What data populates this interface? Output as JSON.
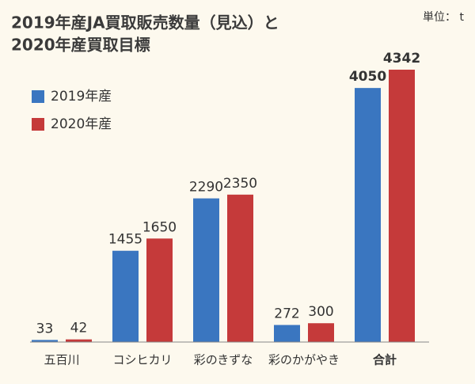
{
  "chart_data": {
    "type": "bar",
    "title": [
      "2019年産JA買取販売数量（見込）と",
      "2020年産買取目標"
    ],
    "unit": "単位： t",
    "categories": [
      "五百川",
      "コシヒカリ",
      "彩のきずな",
      "彩のかがやき",
      "合計"
    ],
    "series": [
      {
        "name": "2019年産",
        "color": "#3a76c0",
        "values": [
          33,
          1455,
          2290,
          272,
          4050
        ]
      },
      {
        "name": "2020年産",
        "color": "#c53a3a",
        "values": [
          42,
          1650,
          2350,
          300,
          4342
        ]
      }
    ]
  }
}
